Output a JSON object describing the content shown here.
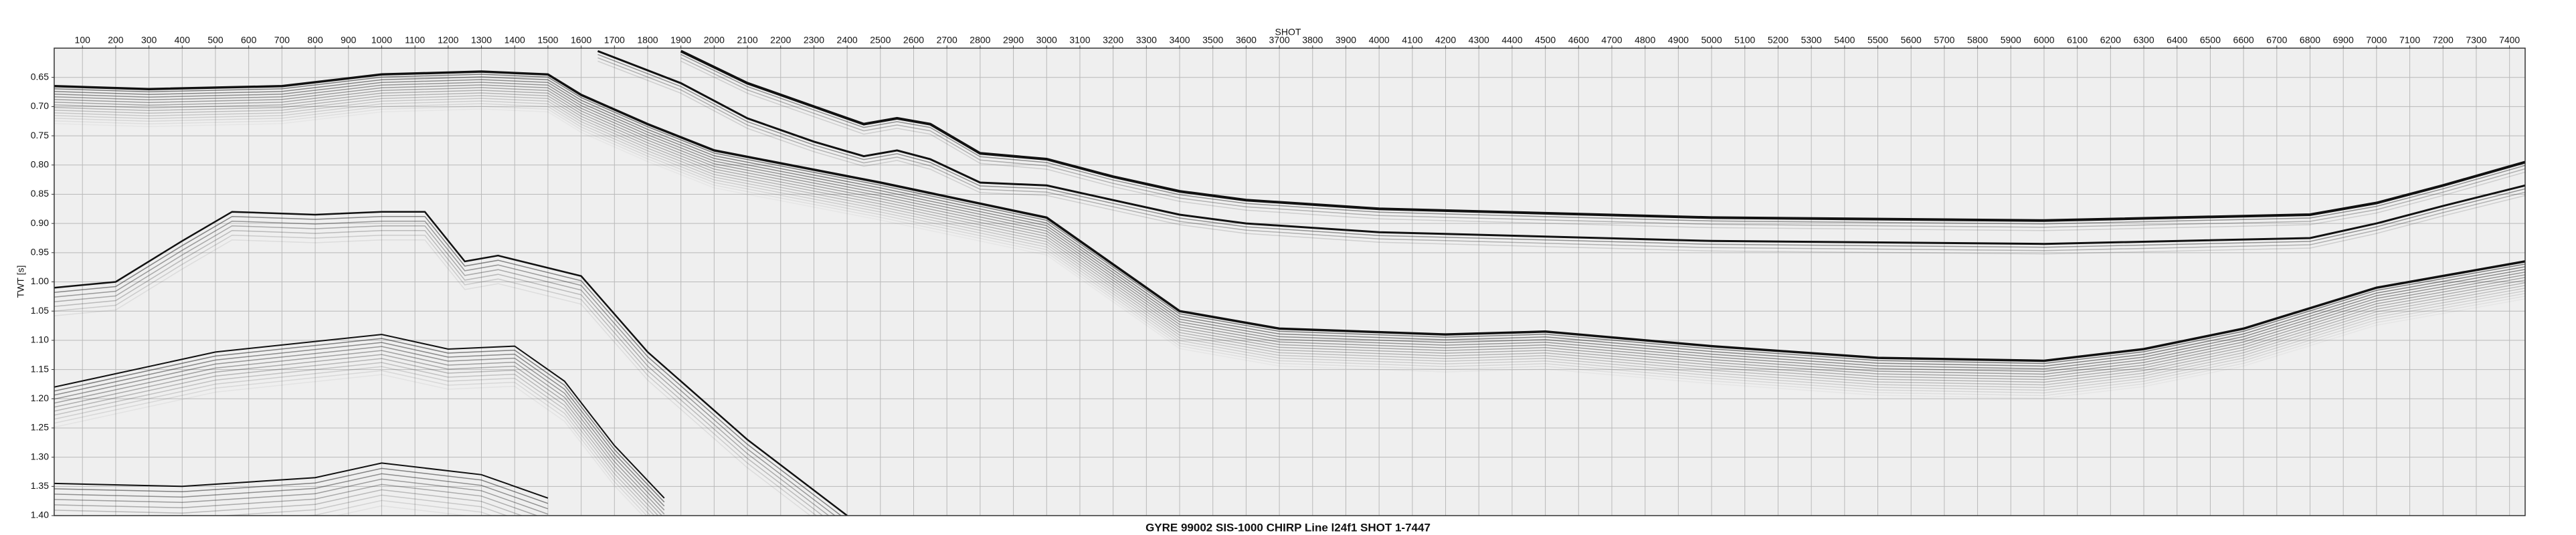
{
  "chart_data": {
    "type": "line",
    "title": "GYRE 99002 SIS-1000 CHIRP Line l24f1 SHOT 1-7447",
    "xlabel": "SHOT",
    "ylabel": "TWT [s]",
    "color": "#111111",
    "grid": true,
    "xlim": [
      15,
      7447
    ],
    "ylim": [
      1.4,
      0.6
    ],
    "xticks": [
      100,
      200,
      300,
      400,
      500,
      600,
      700,
      800,
      900,
      1000,
      1100,
      1200,
      1300,
      1400,
      1500,
      1600,
      1700,
      1800,
      1900,
      2000,
      2100,
      2200,
      2300,
      2400,
      2500,
      2600,
      2700,
      2800,
      2900,
      3000,
      3100,
      3200,
      3300,
      3400,
      3500,
      3600,
      3700,
      3800,
      3900,
      4000,
      4100,
      4200,
      4300,
      4400,
      4500,
      4600,
      4700,
      4800,
      4900,
      5000,
      5100,
      5200,
      5300,
      5400,
      5500,
      5600,
      5700,
      5800,
      5900,
      6000,
      6100,
      6200,
      6300,
      6400,
      6500,
      6600,
      6700,
      6800,
      6900,
      7000,
      7100,
      7200,
      7300,
      7400
    ],
    "yticks": [
      0.65,
      {
        "value": 0.7,
        "label": "0.70"
      },
      0.75,
      {
        "value": 0.8,
        "label": "0.80"
      },
      0.85,
      {
        "value": 0.9,
        "label": "0.90"
      },
      0.95,
      {
        "value": 1.0,
        "label": "1.00"
      },
      1.05,
      {
        "value": 1.1,
        "label": "1.10"
      },
      1.15,
      {
        "value": 1.2,
        "label": "1.20"
      },
      1.25,
      {
        "value": 1.3,
        "label": "1.30"
      },
      1.35,
      {
        "value": 1.4,
        "label": "1.40"
      }
    ],
    "horizons": [
      {
        "x": [
          15,
          300,
          700,
          1000,
          1300,
          1500,
          1600,
          1800,
          2000,
          2500,
          3000,
          3200,
          3400,
          3700,
          4200,
          4500,
          5000,
          5500,
          6000,
          6300,
          6600,
          7000,
          7447
        ],
        "values": [
          0.665,
          0.67,
          0.665,
          0.645,
          0.64,
          0.645,
          0.68,
          0.73,
          0.775,
          0.83,
          0.89,
          0.97,
          1.05,
          1.08,
          1.09,
          1.085,
          1.11,
          1.13,
          1.135,
          1.115,
          1.08,
          1.01,
          0.965
        ]
      },
      {
        "x": [
          1900,
          2100,
          2300,
          2450,
          2550,
          2650,
          2800,
          3000,
          3200,
          3400,
          3600,
          4000,
          5000,
          6000,
          6800,
          7000,
          7200,
          7447
        ],
        "values": [
          0.605,
          0.66,
          0.7,
          0.73,
          0.72,
          0.73,
          0.78,
          0.79,
          0.82,
          0.845,
          0.86,
          0.875,
          0.89,
          0.895,
          0.885,
          0.865,
          0.835,
          0.795
        ]
      },
      {
        "x": [
          1650,
          1900,
          2100,
          2300,
          2450,
          2550,
          2650,
          2800,
          3000,
          3200,
          3400,
          3600,
          4000,
          5000,
          6000,
          6800,
          7000,
          7200,
          7447
        ],
        "values": [
          0.605,
          0.66,
          0.72,
          0.76,
          0.785,
          0.775,
          0.79,
          0.83,
          0.835,
          0.86,
          0.885,
          0.9,
          0.915,
          0.93,
          0.935,
          0.925,
          0.9,
          0.87,
          0.835
        ]
      },
      {
        "x": [
          15,
          200,
          400,
          550,
          800,
          1000,
          1130,
          1250,
          1350,
          1600,
          1800,
          2100,
          2400
        ],
        "values": [
          1.01,
          1.0,
          0.93,
          0.88,
          0.885,
          0.88,
          0.88,
          0.965,
          0.955,
          0.99,
          1.12,
          1.27,
          1.4
        ]
      },
      {
        "x": [
          15,
          500,
          1000,
          1200,
          1400,
          1550,
          1700,
          1850
        ],
        "values": [
          1.18,
          1.12,
          1.09,
          1.115,
          1.11,
          1.17,
          1.28,
          1.37
        ]
      },
      {
        "x": [
          15,
          400,
          800,
          1000,
          1300,
          1500
        ],
        "values": [
          1.345,
          1.35,
          1.335,
          1.31,
          1.33,
          1.37
        ]
      }
    ]
  }
}
